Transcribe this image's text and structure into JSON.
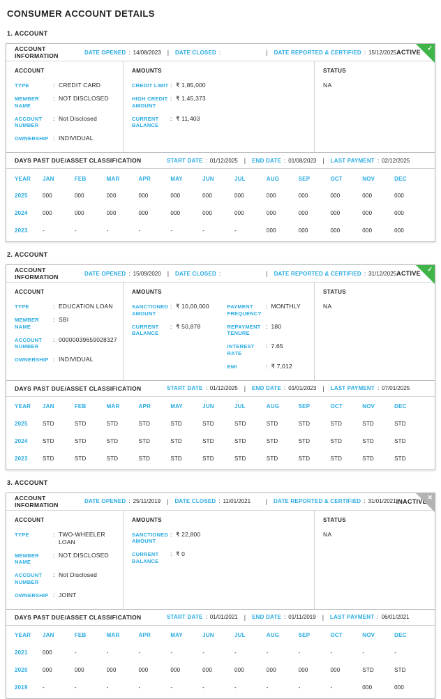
{
  "page_title": "CONSUMER ACCOUNT DETAILS",
  "labels": {
    "account_information": "ACCOUNT INFORMATION",
    "date_opened": "DATE OPENED",
    "date_closed": "DATE CLOSED",
    "date_reported_certified": "DATE REPORTED & CERTIFIED",
    "account_col": "ACCOUNT",
    "amounts_col": "AMOUNTS",
    "status_col": "STATUS",
    "dpd_title": "DAYS PAST DUE/ASSET CLASSIFICATION",
    "start_date": "START DATE",
    "end_date": "END DATE",
    "last_payment": "LAST PAYMENT",
    "year_col": "YEAR",
    "colon": ":",
    "pipe": "|"
  },
  "months": [
    "JAN",
    "FEB",
    "MAR",
    "APR",
    "MAY",
    "JUN",
    "JUL",
    "AUG",
    "SEP",
    "OCT",
    "NOV",
    "DEC"
  ],
  "colors": {
    "accent_cyan": "#29abe2",
    "active_green": "#3fb549",
    "inactive_gray": "#b3b3b3",
    "text_dark": "#231f20"
  },
  "accounts": [
    {
      "section_label": "1. ACCOUNT",
      "badge": "ACTIVE",
      "badge_type": "active",
      "badge_icon": "check",
      "date_opened": "14/08/2023",
      "date_closed": "",
      "date_reported_certified": "15/12/2025",
      "status_value": "NA",
      "account_fields": [
        {
          "label": "TYPE",
          "value": "CREDIT CARD"
        },
        {
          "label": "MEMBER NAME",
          "value": "NOT DISCLOSED"
        },
        {
          "label": "ACCOUNT NUMBER",
          "value": "Not Disclosed"
        },
        {
          "label": "OWNERSHIP",
          "value": "INDIVIDUAL"
        }
      ],
      "amounts_col1": [
        {
          "label": "CREDIT LIMIT",
          "value": "₹ 1,85,000"
        },
        {
          "label": "HIGH CREDIT AMOUNT",
          "value": "₹ 1,45,373"
        },
        {
          "label": "CURRENT BALANCE",
          "value": "₹ 11,403"
        }
      ],
      "amounts_col2": [],
      "dpd": {
        "start_date": "01/12/2025",
        "end_date": "01/08/2023",
        "last_payment": "02/12/2025",
        "rows": [
          {
            "year": "2025",
            "values": [
              "000",
              "000",
              "000",
              "000",
              "000",
              "000",
              "000",
              "000",
              "000",
              "000",
              "000",
              "000"
            ]
          },
          {
            "year": "2024",
            "values": [
              "000",
              "000",
              "000",
              "000",
              "000",
              "000",
              "000",
              "000",
              "000",
              "000",
              "000",
              "000"
            ]
          },
          {
            "year": "2023",
            "values": [
              "-",
              "-",
              "-",
              "-",
              "-",
              "-",
              "-",
              "000",
              "000",
              "000",
              "000",
              "000"
            ]
          }
        ]
      }
    },
    {
      "section_label": "2. ACCOUNT",
      "badge": "ACTIVE",
      "badge_type": "active",
      "badge_icon": "check",
      "date_opened": "15/09/2020",
      "date_closed": "",
      "date_reported_certified": "31/12/2025",
      "status_value": "NA",
      "account_fields": [
        {
          "label": "TYPE",
          "value": "EDUCATION LOAN"
        },
        {
          "label": "MEMBER NAME",
          "value": "SBI"
        },
        {
          "label": "ACCOUNT NUMBER",
          "value": "00000039659028327"
        },
        {
          "label": "OWNERSHIP",
          "value": "INDIVIDUAL"
        }
      ],
      "amounts_col1": [
        {
          "label": "SANCTIONED AMOUNT",
          "value": "₹ 10,00,000"
        },
        {
          "label": "CURRENT BALANCE",
          "value": "₹ 50,878"
        }
      ],
      "amounts_col2": [
        {
          "label": "PAYMENT FREQUENCY",
          "value": "MONTHLY"
        },
        {
          "label": "REPAYMENT TENURE",
          "value": "180"
        },
        {
          "label": "INTEREST RATE",
          "value": "7.65"
        },
        {
          "label": "EMI",
          "value": "₹ 7,012"
        }
      ],
      "dpd": {
        "start_date": "01/12/2025",
        "end_date": "01/01/2023",
        "last_payment": "07/01/2025",
        "rows": [
          {
            "year": "2025",
            "values": [
              "STD",
              "STD",
              "STD",
              "STD",
              "STD",
              "STD",
              "STD",
              "STD",
              "STD",
              "STD",
              "STD",
              "STD"
            ]
          },
          {
            "year": "2024",
            "values": [
              "STD",
              "STD",
              "STD",
              "STD",
              "STD",
              "STD",
              "STD",
              "STD",
              "STD",
              "STD",
              "STD",
              "STD"
            ]
          },
          {
            "year": "2023",
            "values": [
              "STD",
              "STD",
              "STD",
              "STD",
              "STD",
              "STD",
              "STD",
              "STD",
              "STD",
              "STD",
              "STD",
              "STD"
            ]
          }
        ]
      }
    },
    {
      "section_label": "3. ACCOUNT",
      "badge": "INACTIVE",
      "badge_type": "inactive",
      "badge_icon": "close",
      "date_opened": "25/11/2019",
      "date_closed": "11/01/2021",
      "date_reported_certified": "31/01/2021",
      "status_value": "NA",
      "account_fields": [
        {
          "label": "TYPE",
          "value": "TWO-WHEELER LOAN"
        },
        {
          "label": "MEMBER NAME",
          "value": "NOT DISCLOSED"
        },
        {
          "label": "ACCOUNT NUMBER",
          "value": "Not Disclosed"
        },
        {
          "label": "OWNERSHIP",
          "value": "JOINT"
        }
      ],
      "amounts_col1": [
        {
          "label": "SANCTIONED AMOUNT",
          "value": "₹ 22,800"
        },
        {
          "label": "CURRENT BALANCE",
          "value": "₹ 0"
        }
      ],
      "amounts_col2": [],
      "dpd": {
        "start_date": "01/01/2021",
        "end_date": "01/11/2019",
        "last_payment": "06/01/2021",
        "rows": [
          {
            "year": "2021",
            "values": [
              "000",
              "-",
              "-",
              "-",
              "-",
              "-",
              "-",
              "-",
              "-",
              "-",
              "-",
              "-"
            ]
          },
          {
            "year": "2020",
            "values": [
              "000",
              "000",
              "000",
              "000",
              "000",
              "000",
              "000",
              "000",
              "000",
              "000",
              "STD",
              "STD"
            ]
          },
          {
            "year": "2019",
            "values": [
              "-",
              "-",
              "-",
              "-",
              "-",
              "-",
              "-",
              "-",
              "-",
              "-",
              "000",
              "000"
            ]
          }
        ]
      }
    }
  ]
}
